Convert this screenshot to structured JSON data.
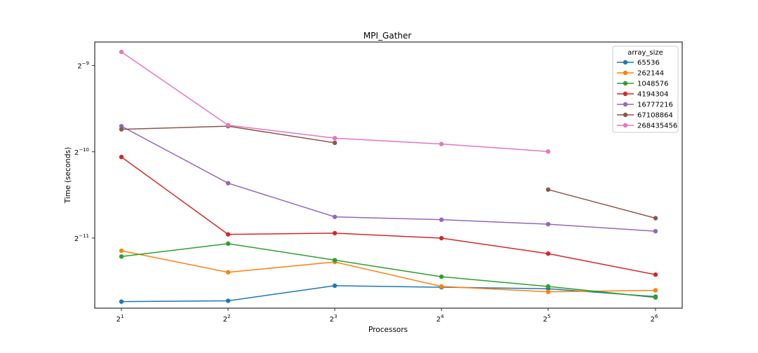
{
  "chart_data": {
    "type": "line",
    "title": "MPI_Gather",
    "xlabel": "Processors",
    "ylabel": "Time (seconds)",
    "xscale": "log2",
    "yscale": "log2",
    "x": [
      2,
      4,
      8,
      16,
      32,
      64
    ],
    "x_tick_labels": [
      {
        "base": "2",
        "exp": "1"
      },
      {
        "base": "2",
        "exp": "2"
      },
      {
        "base": "2",
        "exp": "3"
      },
      {
        "base": "2",
        "exp": "4"
      },
      {
        "base": "2",
        "exp": "5"
      },
      {
        "base": "2",
        "exp": "6"
      }
    ],
    "y_ticks": [
      {
        "value": 0.001953125,
        "base": "2",
        "exp": "−9"
      },
      {
        "value": 0.0009765625,
        "base": "2",
        "exp": "−10"
      },
      {
        "value": 0.00048828125,
        "base": "2",
        "exp": "−11"
      }
    ],
    "ylim": [
      0.000278,
      0.00236
    ],
    "grid": false,
    "legend": {
      "title": "array_size",
      "placement": "top-right"
    },
    "series": [
      {
        "name": "65536",
        "color": "#1f77b4",
        "values": [
          0.000293,
          0.000295,
          0.000333,
          0.000329,
          0.000325,
          0.000305
        ]
      },
      {
        "name": "262144",
        "color": "#ff7f0e",
        "values": [
          0.000441,
          0.000371,
          0.000403,
          0.000331,
          0.000317,
          0.000321
        ]
      },
      {
        "name": "1048576",
        "color": "#2ca02c",
        "values": [
          0.000421,
          0.000467,
          0.000409,
          0.000358,
          0.000331,
          0.000303
        ]
      },
      {
        "name": "4194304",
        "color": "#d62728",
        "values": [
          0.000937,
          0.000503,
          0.000508,
          0.000488,
          0.000431,
          0.000364
        ]
      },
      {
        "name": "16777216",
        "color": "#9467bd",
        "values": [
          0.0012,
          0.000759,
          0.000579,
          0.000566,
          0.000546,
          0.000516
        ]
      },
      {
        "name": "67108864",
        "color": "#8c564b",
        "values": [
          0.00117,
          0.0012,
          0.00105,
          null,
          0.000721,
          0.000573
        ]
      },
      {
        "name": "268435456",
        "color": "#e377c2",
        "values": [
          0.00218,
          0.00121,
          0.00109,
          0.00104,
          0.000979,
          null
        ]
      }
    ]
  }
}
